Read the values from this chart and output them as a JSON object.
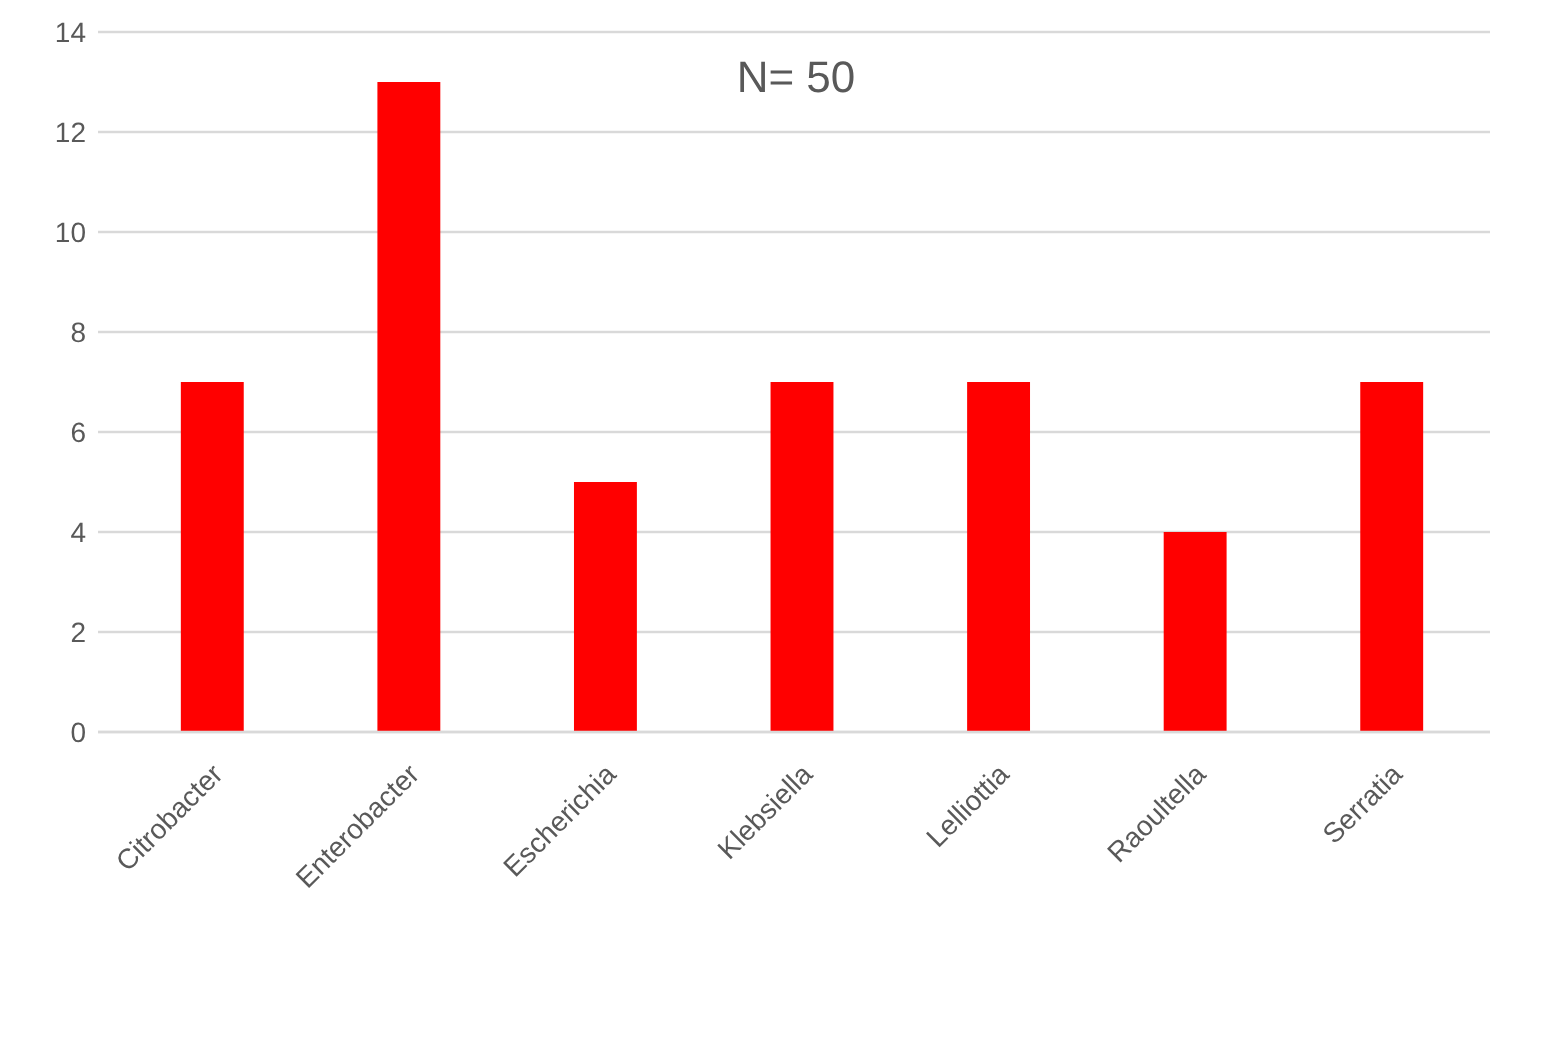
{
  "chart_data": {
    "type": "bar",
    "title": "N= 50",
    "categories": [
      "Citrobacter",
      "Enterobacter",
      "Escherichia",
      "Klebsiella",
      "Lelliottia",
      "Raoultella",
      "Serratia"
    ],
    "values": [
      7,
      13,
      5,
      7,
      7,
      4,
      7
    ],
    "color": "#ff0000",
    "ylim": [
      0,
      14
    ],
    "yticks": [
      0,
      2,
      4,
      6,
      8,
      10,
      12,
      14
    ],
    "grid": "y"
  }
}
